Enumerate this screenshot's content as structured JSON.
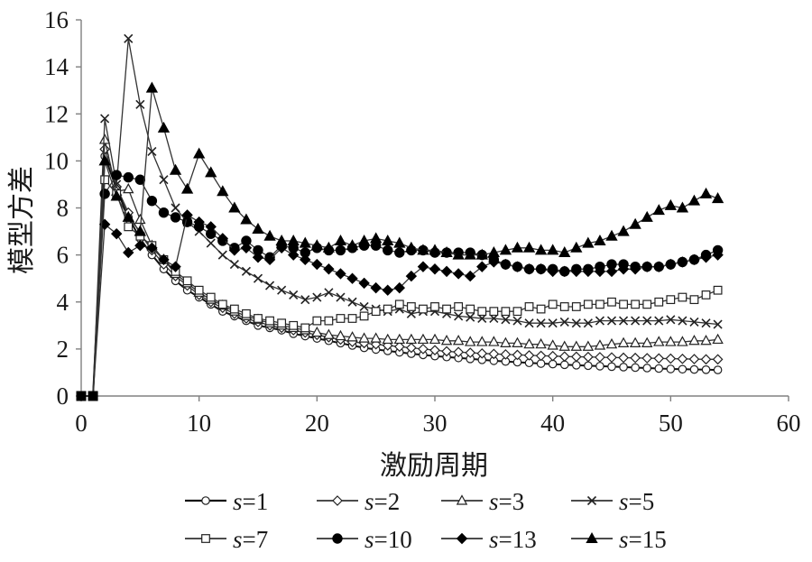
{
  "chart_data": {
    "type": "line",
    "xlabel": "激励周期",
    "ylabel": "模型方差",
    "xlim": [
      0,
      60
    ],
    "ylim": [
      0,
      16
    ],
    "xticks": [
      0,
      10,
      20,
      30,
      40,
      50,
      60
    ],
    "yticks": [
      0,
      2,
      4,
      6,
      8,
      10,
      12,
      14,
      16
    ],
    "grid": false,
    "legend": "bottom",
    "series": [
      {
        "name": "s=1",
        "legend_symbol": "s",
        "legend_value": "=1",
        "marker": "circle-open",
        "x": [
          0,
          1,
          2,
          3,
          4,
          5,
          6,
          7,
          8,
          9,
          10,
          11,
          12,
          13,
          14,
          15,
          16,
          17,
          18,
          19,
          20,
          21,
          22,
          23,
          24,
          25,
          26,
          27,
          28,
          29,
          30,
          31,
          32,
          33,
          34,
          35,
          36,
          37,
          38,
          39,
          40,
          41,
          42,
          43,
          44,
          45,
          46,
          47,
          48,
          49,
          50,
          51,
          52,
          53,
          54
        ],
        "values": [
          0,
          0,
          10.2,
          8.8,
          7.6,
          6.7,
          6.0,
          5.4,
          4.9,
          4.5,
          4.2,
          3.9,
          3.6,
          3.4,
          3.2,
          3.0,
          2.9,
          2.8,
          2.65,
          2.55,
          2.45,
          2.35,
          2.25,
          2.15,
          2.05,
          1.98,
          1.92,
          1.86,
          1.8,
          1.75,
          1.7,
          1.66,
          1.62,
          1.58,
          1.54,
          1.5,
          1.47,
          1.44,
          1.41,
          1.38,
          1.36,
          1.33,
          1.31,
          1.29,
          1.27,
          1.25,
          1.23,
          1.21,
          1.19,
          1.17,
          1.15,
          1.14,
          1.13,
          1.12,
          1.11
        ]
      },
      {
        "name": "s=2",
        "legend_symbol": "s",
        "legend_value": "=2",
        "marker": "diamond-open",
        "x": [
          0,
          1,
          2,
          3,
          4,
          5,
          6,
          7,
          8,
          9,
          10,
          11,
          12,
          13,
          14,
          15,
          16,
          17,
          18,
          19,
          20,
          21,
          22,
          23,
          24,
          25,
          26,
          27,
          28,
          29,
          30,
          31,
          32,
          33,
          34,
          35,
          36,
          37,
          38,
          39,
          40,
          41,
          42,
          43,
          44,
          45,
          46,
          47,
          48,
          49,
          50,
          51,
          52,
          53,
          54
        ],
        "values": [
          0,
          0,
          10.5,
          8.9,
          7.8,
          6.9,
          6.2,
          5.6,
          5.1,
          4.7,
          4.3,
          4.0,
          3.75,
          3.5,
          3.3,
          3.15,
          3.0,
          2.9,
          2.8,
          2.7,
          2.6,
          2.5,
          2.4,
          2.3,
          2.25,
          2.2,
          2.15,
          2.1,
          2.05,
          2.0,
          1.95,
          1.9,
          1.87,
          1.84,
          1.81,
          1.79,
          1.77,
          1.75,
          1.73,
          1.71,
          1.7,
          1.68,
          1.67,
          1.66,
          1.65,
          1.64,
          1.63,
          1.62,
          1.61,
          1.6,
          1.59,
          1.58,
          1.57,
          1.56,
          1.56
        ]
      },
      {
        "name": "s=3",
        "legend_symbol": "s",
        "legend_value": "=3",
        "marker": "triangle-open",
        "x": [
          0,
          1,
          2,
          3,
          4,
          5,
          6,
          7,
          8,
          9,
          10,
          11,
          12,
          13,
          14,
          15,
          16,
          17,
          18,
          19,
          20,
          21,
          22,
          23,
          24,
          25,
          26,
          27,
          28,
          29,
          30,
          31,
          32,
          33,
          34,
          35,
          36,
          37,
          38,
          39,
          40,
          41,
          42,
          43,
          44,
          45,
          46,
          47,
          48,
          49,
          50,
          51,
          52,
          53,
          54
        ],
        "values": [
          0,
          0,
          10.9,
          8.7,
          8.8,
          7.5,
          6.4,
          5.8,
          5.2,
          4.8,
          4.4,
          4.1,
          3.85,
          3.6,
          3.4,
          3.25,
          3.1,
          3.0,
          2.9,
          2.8,
          2.7,
          2.6,
          2.55,
          2.5,
          2.45,
          2.45,
          2.4,
          2.4,
          2.4,
          2.4,
          2.4,
          2.35,
          2.35,
          2.3,
          2.3,
          2.3,
          2.25,
          2.25,
          2.2,
          2.2,
          2.15,
          2.1,
          2.1,
          2.1,
          2.15,
          2.2,
          2.25,
          2.25,
          2.25,
          2.3,
          2.3,
          2.3,
          2.35,
          2.35,
          2.4
        ]
      },
      {
        "name": "s=5",
        "legend_symbol": "s",
        "legend_value": "=5",
        "marker": "x",
        "x": [
          0,
          1,
          2,
          3,
          4,
          5,
          6,
          7,
          8,
          9,
          10,
          11,
          12,
          13,
          14,
          15,
          16,
          17,
          18,
          19,
          20,
          21,
          22,
          23,
          24,
          25,
          26,
          27,
          28,
          29,
          30,
          31,
          32,
          33,
          34,
          35,
          36,
          37,
          38,
          39,
          40,
          41,
          42,
          43,
          44,
          45,
          46,
          47,
          48,
          49,
          50,
          51,
          52,
          53,
          54
        ],
        "values": [
          0,
          0,
          11.8,
          9.0,
          15.2,
          12.4,
          10.4,
          9.2,
          8.0,
          7.4,
          7.0,
          6.5,
          6.0,
          5.6,
          5.3,
          5.0,
          4.7,
          4.5,
          4.3,
          4.1,
          4.2,
          4.4,
          4.2,
          4.0,
          3.8,
          3.7,
          3.6,
          3.7,
          3.5,
          3.6,
          3.6,
          3.5,
          3.4,
          3.35,
          3.3,
          3.3,
          3.25,
          3.2,
          3.1,
          3.1,
          3.1,
          3.15,
          3.1,
          3.1,
          3.2,
          3.2,
          3.2,
          3.2,
          3.2,
          3.2,
          3.25,
          3.2,
          3.15,
          3.1,
          3.05
        ]
      },
      {
        "name": "s=7",
        "legend_symbol": "s",
        "legend_value": "=7",
        "marker": "square-open",
        "x": [
          0,
          1,
          2,
          3,
          4,
          5,
          6,
          7,
          8,
          9,
          10,
          11,
          12,
          13,
          14,
          15,
          16,
          17,
          18,
          19,
          20,
          21,
          22,
          23,
          24,
          25,
          26,
          27,
          28,
          29,
          30,
          31,
          32,
          33,
          34,
          35,
          36,
          37,
          38,
          39,
          40,
          41,
          42,
          43,
          44,
          45,
          46,
          47,
          48,
          49,
          50,
          51,
          52,
          53,
          54
        ],
        "values": [
          0,
          0,
          9.2,
          8.6,
          7.2,
          6.8,
          6.4,
          5.8,
          5.3,
          4.9,
          4.5,
          4.2,
          3.9,
          3.7,
          3.5,
          3.3,
          3.2,
          3.1,
          3.0,
          2.9,
          3.2,
          3.2,
          3.3,
          3.3,
          3.4,
          3.6,
          3.7,
          3.9,
          3.8,
          3.7,
          3.8,
          3.7,
          3.8,
          3.7,
          3.6,
          3.6,
          3.6,
          3.6,
          3.8,
          3.7,
          3.9,
          3.8,
          3.8,
          3.9,
          3.9,
          4.0,
          3.9,
          3.9,
          3.9,
          4.0,
          4.1,
          4.2,
          4.1,
          4.3,
          4.5
        ]
      },
      {
        "name": "s=10",
        "legend_symbol": "s",
        "legend_value": "=10",
        "marker": "circle-filled",
        "x": [
          0,
          1,
          2,
          3,
          4,
          5,
          6,
          7,
          8,
          9,
          10,
          11,
          12,
          13,
          14,
          15,
          16,
          17,
          18,
          19,
          20,
          21,
          22,
          23,
          24,
          25,
          26,
          27,
          28,
          29,
          30,
          31,
          32,
          33,
          34,
          35,
          36,
          37,
          38,
          39,
          40,
          41,
          42,
          43,
          44,
          45,
          46,
          47,
          48,
          49,
          50,
          51,
          52,
          53,
          54
        ],
        "values": [
          0,
          0,
          8.6,
          9.4,
          9.3,
          9.2,
          8.3,
          7.8,
          7.6,
          7.4,
          7.2,
          6.9,
          6.6,
          6.3,
          6.6,
          6.2,
          5.9,
          6.4,
          6.3,
          6.1,
          6.3,
          6.2,
          6.2,
          6.3,
          6.4,
          6.4,
          6.2,
          6.1,
          6.2,
          6.2,
          6.1,
          6.1,
          6.1,
          6.1,
          6.0,
          5.8,
          5.6,
          5.5,
          5.4,
          5.4,
          5.4,
          5.3,
          5.4,
          5.4,
          5.5,
          5.6,
          5.6,
          5.5,
          5.5,
          5.5,
          5.6,
          5.7,
          5.8,
          6.0,
          6.2
        ]
      },
      {
        "name": "s=13",
        "legend_symbol": "s",
        "legend_value": "=13",
        "marker": "diamond-filled",
        "x": [
          0,
          1,
          2,
          3,
          4,
          5,
          6,
          7,
          8,
          9,
          10,
          11,
          12,
          13,
          14,
          15,
          16,
          17,
          18,
          19,
          20,
          21,
          22,
          23,
          24,
          25,
          26,
          27,
          28,
          29,
          30,
          31,
          32,
          33,
          34,
          35,
          36,
          37,
          38,
          39,
          40,
          41,
          42,
          43,
          44,
          45,
          46,
          47,
          48,
          49,
          50,
          51,
          52,
          53,
          54
        ],
        "values": [
          0,
          0,
          7.3,
          6.9,
          6.1,
          6.4,
          6.3,
          5.8,
          5.5,
          7.7,
          7.4,
          7.2,
          6.7,
          6.2,
          6.3,
          5.9,
          5.8,
          6.3,
          6.0,
          5.8,
          5.6,
          5.4,
          5.2,
          5.0,
          4.8,
          4.6,
          4.5,
          4.6,
          5.1,
          5.5,
          5.4,
          5.3,
          5.2,
          5.1,
          5.5,
          5.7,
          5.6,
          5.5,
          5.4,
          5.4,
          5.3,
          5.3,
          5.3,
          5.3,
          5.3,
          5.3,
          5.4,
          5.4,
          5.5,
          5.5,
          5.6,
          5.7,
          5.8,
          5.9,
          6.0
        ]
      },
      {
        "name": "s=15",
        "legend_symbol": "s",
        "legend_value": "=15",
        "marker": "triangle-filled",
        "x": [
          0,
          1,
          2,
          3,
          4,
          5,
          6,
          7,
          8,
          9,
          10,
          11,
          12,
          13,
          14,
          15,
          16,
          17,
          18,
          19,
          20,
          21,
          22,
          23,
          24,
          25,
          26,
          27,
          28,
          29,
          30,
          31,
          32,
          33,
          34,
          35,
          36,
          37,
          38,
          39,
          40,
          41,
          42,
          43,
          44,
          45,
          46,
          47,
          48,
          49,
          50,
          51,
          52,
          53,
          54
        ],
        "values": [
          0,
          0,
          10.0,
          8.5,
          7.6,
          7.0,
          13.1,
          11.4,
          9.6,
          8.8,
          10.3,
          9.5,
          8.7,
          8.0,
          7.5,
          7.1,
          6.8,
          6.6,
          6.6,
          6.5,
          6.4,
          6.3,
          6.6,
          6.4,
          6.6,
          6.7,
          6.6,
          6.5,
          6.3,
          6.2,
          6.2,
          6.1,
          6.0,
          6.0,
          6.0,
          6.1,
          6.2,
          6.3,
          6.3,
          6.2,
          6.2,
          6.1,
          6.3,
          6.5,
          6.6,
          6.8,
          7.0,
          7.3,
          7.6,
          7.9,
          8.1,
          8.0,
          8.3,
          8.6,
          8.4
        ]
      }
    ]
  }
}
